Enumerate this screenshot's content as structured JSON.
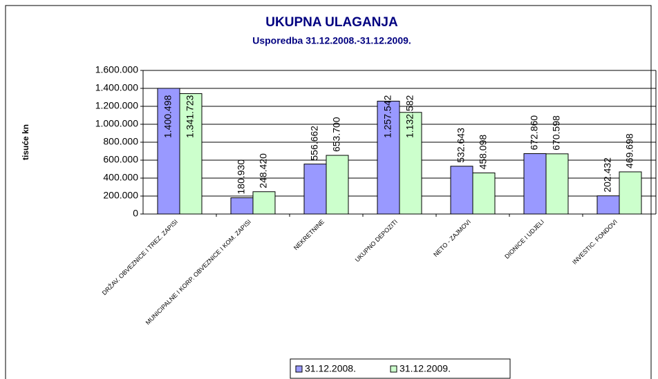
{
  "chart_data": {
    "type": "bar",
    "title": "UKUPNA ULAGANJA",
    "subtitle": "Usporedba 31.12.2008.-31.12.2009.",
    "y_label": "tisuće kn",
    "categories": [
      "DRŽAV. OBVEZNICE I TREZ. ZAPISI",
      "MUNICIPALNE I KORP. OBVEZNICE I KOM. ZAPISI",
      "NEKRETNINE",
      "UKUPNO DEPOZITI",
      "NETO - ZAJMOVI",
      "DIONICE I UDJELI",
      "INVESTIC. FONDOVI"
    ],
    "series": [
      {
        "name": "31.12.2008.",
        "color": "#9999ff",
        "values": [
          1400498,
          180930,
          556662,
          1257542,
          532643,
          672860,
          202432
        ],
        "value_labels": [
          "1.400.498",
          "180.930",
          "556.662",
          "1.257.542",
          "532.643",
          "672.860",
          "202.432"
        ]
      },
      {
        "name": "31.12.2009.",
        "color": "#ccffcc",
        "values": [
          1341723,
          248420,
          653700,
          1132582,
          458098,
          670598,
          469698
        ],
        "value_labels": [
          "1.341.723",
          "248.420",
          "653.700",
          "1.132.582",
          "458.098",
          "670.598",
          "469.698"
        ]
      }
    ],
    "ylim": [
      0,
      1600000
    ],
    "yticks": [
      0,
      {
        "value": 200000,
        "label": "200.000"
      },
      {
        "value": 400000,
        "label": "400.000"
      },
      {
        "value": 600000,
        "label": "600.000"
      },
      {
        "value": 800000,
        "label": "800.000"
      },
      {
        "value": 1000000,
        "label": "1.000.000"
      },
      {
        "value": 1200000,
        "label": "1.200.000"
      },
      {
        "value": 1400000,
        "label": "1.400.000"
      },
      {
        "value": 1600000,
        "label": "1.600.000"
      }
    ],
    "grid": true,
    "legend": "bottom"
  }
}
